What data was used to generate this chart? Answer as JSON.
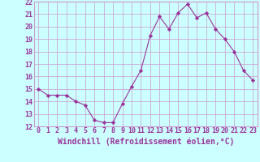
{
  "x": [
    0,
    1,
    2,
    3,
    4,
    5,
    6,
    7,
    8,
    9,
    10,
    11,
    12,
    13,
    14,
    15,
    16,
    17,
    18,
    19,
    20,
    21,
    22,
    23
  ],
  "y": [
    15.0,
    14.5,
    14.5,
    14.5,
    14.0,
    13.7,
    12.5,
    12.3,
    12.3,
    13.8,
    15.2,
    16.5,
    19.3,
    20.8,
    19.8,
    21.1,
    21.8,
    20.7,
    21.1,
    19.8,
    19.0,
    18.0,
    16.5,
    15.7
  ],
  "line_color": "#993399",
  "marker": "D",
  "marker_size": 2.2,
  "bg_color": "#ccffff",
  "grid_color": "#cc99cc",
  "xlabel": "Windchill (Refroidissement éolien,°C)",
  "xlabel_fontsize": 7,
  "ylim": [
    12,
    22
  ],
  "xlim": [
    -0.5,
    23.5
  ],
  "yticks": [
    12,
    13,
    14,
    15,
    16,
    17,
    18,
    19,
    20,
    21,
    22
  ],
  "xticks": [
    0,
    1,
    2,
    3,
    4,
    5,
    6,
    7,
    8,
    9,
    10,
    11,
    12,
    13,
    14,
    15,
    16,
    17,
    18,
    19,
    20,
    21,
    22,
    23
  ],
  "tick_fontsize": 6,
  "tick_color": "#993399",
  "border_color": "#cc99cc"
}
